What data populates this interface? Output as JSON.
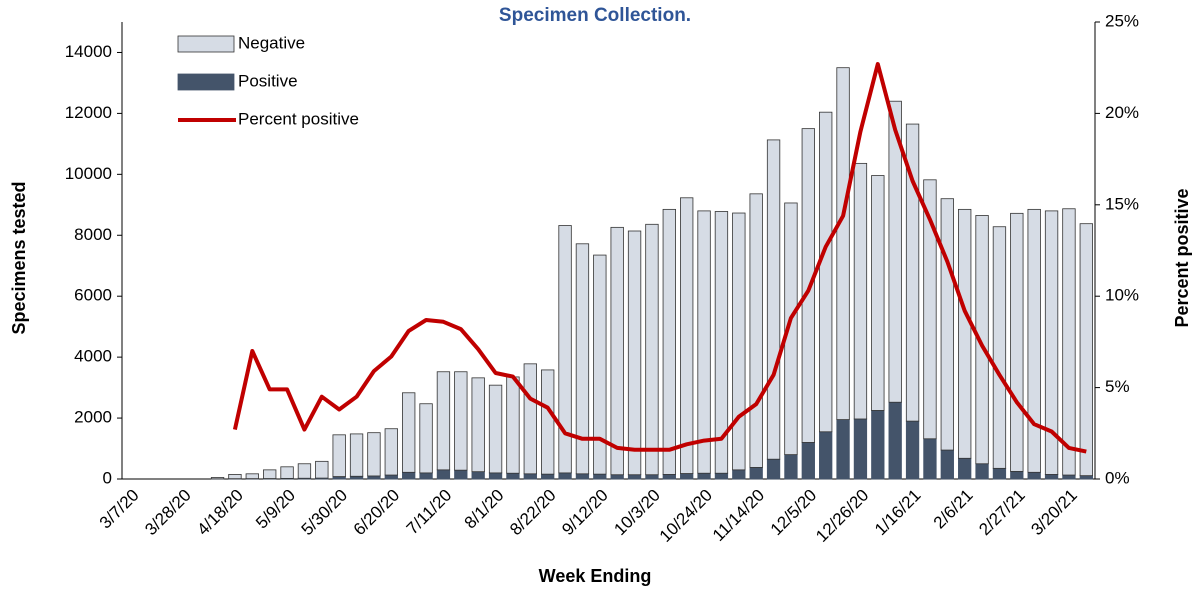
{
  "chart_data": {
    "type": "bar-line",
    "title": "Specimen Collection.",
    "x_label": "Week Ending",
    "y_label": "Specimens tested",
    "y2_label": "Percent positive",
    "categories": [
      "3/7/20",
      null,
      null,
      "3/28/20",
      null,
      null,
      "4/18/20",
      null,
      null,
      "5/9/20",
      null,
      null,
      "5/30/20",
      null,
      null,
      "6/20/20",
      null,
      null,
      "7/11/20",
      null,
      null,
      "8/1/20",
      null,
      null,
      "8/22/20",
      null,
      null,
      "9/12/20",
      null,
      null,
      "10/3/20",
      null,
      null,
      "10/24/20",
      null,
      null,
      "11/14/20",
      null,
      null,
      "12/5/20",
      null,
      null,
      "12/26/20",
      null,
      null,
      "1/16/21",
      null,
      null,
      "2/6/21",
      null,
      null,
      "2/27/21",
      null,
      null,
      "3/20/21",
      null
    ],
    "series": [
      {
        "name": "Positive",
        "color": "#44546a",
        "values": [
          0,
          0,
          0,
          0,
          0,
          5,
          10,
          12,
          15,
          20,
          25,
          30,
          80,
          90,
          100,
          130,
          220,
          200,
          300,
          290,
          240,
          200,
          190,
          170,
          160,
          200,
          170,
          160,
          140,
          140,
          140,
          150,
          180,
          190,
          190,
          300,
          380,
          650,
          800,
          1200,
          1550,
          1950,
          1970,
          2250,
          2520,
          1900,
          1320,
          950,
          680,
          500,
          350,
          250,
          220,
          150,
          130,
          110
        ]
      },
      {
        "name": "Negative",
        "color": "#d6dce5",
        "values": [
          0,
          0,
          0,
          0,
          0,
          45,
          140,
          158,
          285,
          380,
          475,
          550,
          1370,
          1390,
          1420,
          1520,
          2610,
          2270,
          3220,
          3230,
          3080,
          2880,
          3160,
          3610,
          3420,
          8120,
          7550,
          7190,
          8120,
          8000,
          8220,
          8700,
          9050,
          8610,
          8590,
          8430,
          8980,
          10480,
          8260,
          10300,
          10490,
          11550,
          8390,
          7710,
          9880,
          9750,
          8500,
          8250,
          8170,
          8150,
          7930,
          8470,
          8630,
          8650,
          8740,
          8270
        ]
      },
      {
        "name": "Percent positive",
        "color": "#c00000",
        "axis": "y2",
        "values": [
          null,
          null,
          null,
          null,
          null,
          null,
          2.7,
          7.0,
          4.9,
          4.9,
          2.7,
          4.5,
          3.8,
          4.5,
          5.9,
          6.7,
          8.1,
          8.7,
          8.6,
          8.2,
          7.1,
          5.8,
          5.6,
          4.4,
          3.9,
          2.5,
          2.2,
          2.2,
          1.7,
          1.6,
          1.6,
          1.6,
          1.9,
          2.1,
          2.2,
          3.4,
          4.1,
          5.7,
          8.8,
          10.3,
          12.7,
          14.4,
          19.0,
          22.7,
          19.1,
          16.3,
          14.2,
          11.9,
          9.2,
          7.3,
          5.7,
          4.2,
          3.0,
          2.6,
          1.7,
          1.5
        ]
      }
    ],
    "legend_order": [
      "Negative",
      "Positive",
      "Percent positive"
    ],
    "ylim": [
      0,
      15000
    ],
    "yticks": [
      0,
      2000,
      4000,
      6000,
      8000,
      10000,
      12000,
      14000
    ],
    "y2lim": [
      0,
      25
    ],
    "y2ticks": [
      {
        "value": 0,
        "label": "0%"
      },
      {
        "value": 5,
        "label": "5%"
      },
      {
        "value": 10,
        "label": "10%"
      },
      {
        "value": 15,
        "label": "15%"
      },
      {
        "value": 20,
        "label": "20%"
      },
      {
        "value": 25,
        "label": "25%"
      }
    ],
    "grid": false,
    "legend_position": "upper left"
  }
}
